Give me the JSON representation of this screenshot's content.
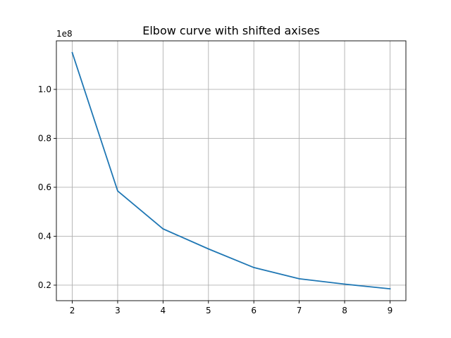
{
  "chart_data": {
    "type": "line",
    "title": "Elbow curve with shifted axises",
    "xlabel": "",
    "ylabel": "",
    "x": [
      2,
      3,
      4,
      5,
      6,
      7,
      8,
      9
    ],
    "series": [
      {
        "values": [
          115000000,
          58500000,
          43000000,
          34800000,
          27200000,
          22600000,
          20400000,
          18500000
        ],
        "color": "#1f77b4"
      }
    ],
    "xlim": [
      1.65,
      9.35
    ],
    "ylim": [
      13650000,
      119840000
    ],
    "x_ticks": [
      "2",
      "3",
      "4",
      "5",
      "6",
      "7",
      "8",
      "9"
    ],
    "y_ticks": [
      {
        "value": 20000000,
        "label": "0.2"
      },
      {
        "value": 40000000,
        "label": "0.4"
      },
      {
        "value": 60000000,
        "label": "0.6"
      },
      {
        "value": 80000000,
        "label": "0.8"
      },
      {
        "value": 100000000,
        "label": "1.0"
      }
    ],
    "y_offset_label": "1e8",
    "grid": true
  }
}
